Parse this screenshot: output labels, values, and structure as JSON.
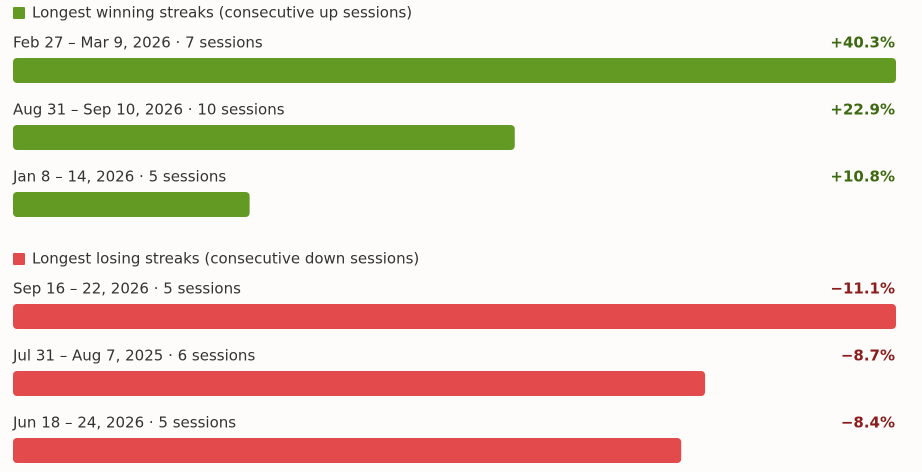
{
  "chart_data": [
    {
      "type": "bar",
      "orientation": "horizontal",
      "title": "Longest winning streaks (consecutive up sessions)",
      "categories": [
        "Feb 27 – Mar 9, 2026 · 7 sessions",
        "Aug 31 – Sep 10, 2026 · 10 sessions",
        "Jan 8 – 14, 2026 · 5 sessions"
      ],
      "values": [
        40.3,
        22.9,
        10.8
      ],
      "value_labels": [
        "+40.3%",
        "+22.9%",
        "+10.8%"
      ],
      "color": "#629a24",
      "label_color": "#3d6a10"
    },
    {
      "type": "bar",
      "orientation": "horizontal",
      "title": "Longest losing streaks (consecutive down sessions)",
      "categories": [
        "Sep 16 – 22, 2026 · 5 sessions",
        "Jul 31 – Aug 7, 2025 · 6 sessions",
        "Jun 18 – 24, 2026 · 5 sessions"
      ],
      "values": [
        -11.1,
        -8.7,
        -8.4
      ],
      "value_labels": [
        "−11.1%",
        "−8.7%",
        "−8.4%"
      ],
      "color": "#e34a4c",
      "label_color": "#8a1c1c"
    }
  ]
}
